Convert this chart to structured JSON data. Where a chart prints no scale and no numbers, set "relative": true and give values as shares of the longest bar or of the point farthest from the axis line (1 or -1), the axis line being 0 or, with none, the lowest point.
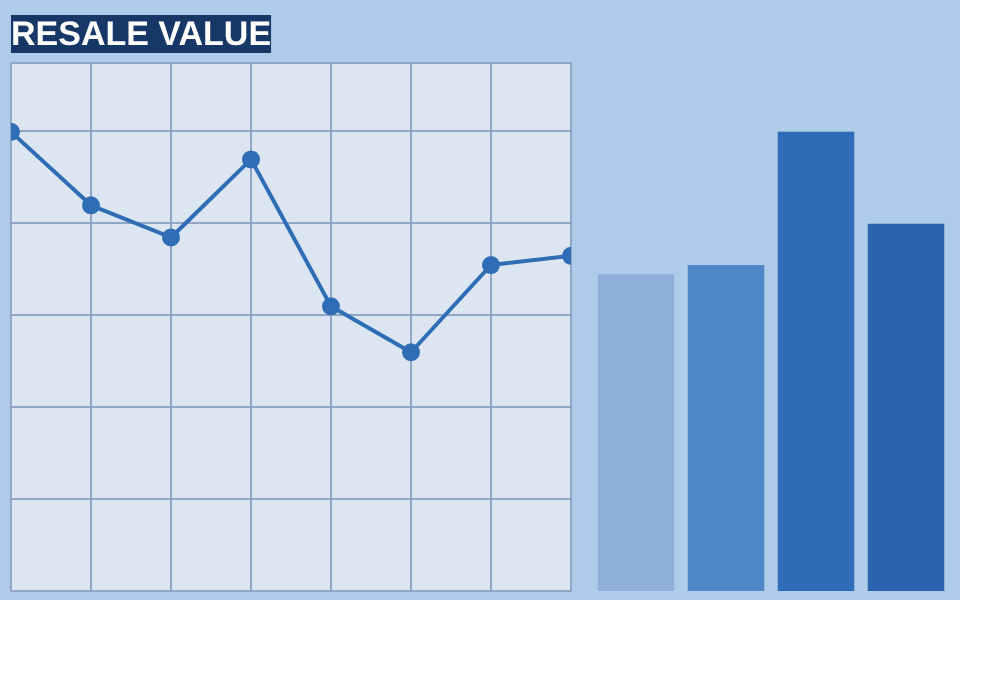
{
  "chart_data": [
    {
      "type": "line",
      "title": "RESALE VALUE",
      "relative": true,
      "categories": [
        null,
        null,
        null,
        null,
        null,
        null,
        null,
        null
      ],
      "grid": true,
      "marker": "circle",
      "line_style": "solid",
      "series": [
        {
          "color": "#2f6db5",
          "values": [
            1,
            0.84,
            0.77,
            0.94,
            0.62,
            0.52,
            0.71,
            0.73
          ]
        }
      ]
    },
    {
      "type": "bar",
      "relative": true,
      "categories": [
        null,
        null,
        null,
        null
      ],
      "values": [
        0.69,
        0.71,
        1,
        0.8
      ],
      "colors": [
        "#8fb0da",
        "#4f86c8",
        "#2f6cb8",
        "#2b64ae"
      ]
    }
  ]
}
